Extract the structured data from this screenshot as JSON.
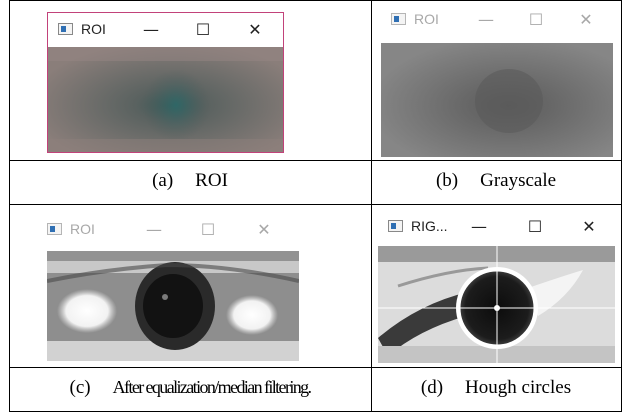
{
  "panels": [
    {
      "id": "a",
      "window": {
        "title": "ROI",
        "active": true,
        "icon": "app-window-icon"
      },
      "caption_label": "(a)",
      "caption_text": "ROI"
    },
    {
      "id": "b",
      "window": {
        "title": "ROI",
        "active": false,
        "icon": "app-window-icon"
      },
      "caption_label": "(b)",
      "caption_text": "Grayscale"
    },
    {
      "id": "c",
      "window": {
        "title": "ROI",
        "active": false,
        "icon": "app-window-icon"
      },
      "caption_label": "(c)",
      "caption_text": "After equalization/median filtering."
    },
    {
      "id": "d",
      "window": {
        "title": "RIG...",
        "active": true,
        "icon": "app-window-icon"
      },
      "caption_label": "(d)",
      "caption_text": "Hough circles"
    }
  ],
  "window_buttons": {
    "minimize": "—",
    "maximize": "☐",
    "close": "✕"
  },
  "colors": {
    "accent_border": "#c2427a",
    "circle_overlay": "#ffffff"
  }
}
